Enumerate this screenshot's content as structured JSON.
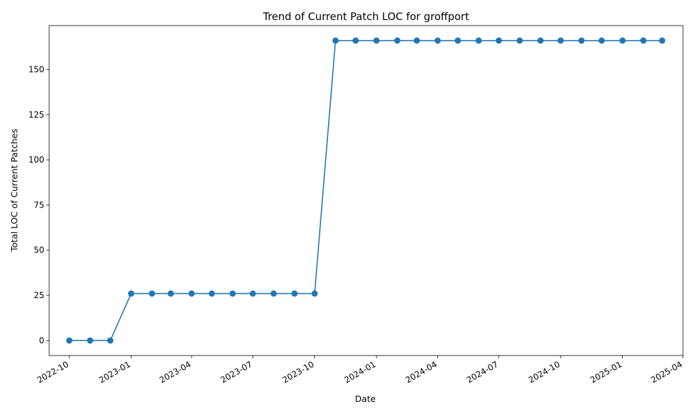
{
  "chart_data": {
    "type": "line",
    "title": "Trend of Current Patch LOC for groffport",
    "xlabel": "Date",
    "ylabel": "Total LOC of Current Patches",
    "x_ticks": [
      "2022-10",
      "2023-01",
      "2023-04",
      "2023-07",
      "2023-10",
      "2024-01",
      "2024-04",
      "2024-07",
      "2024-10",
      "2025-01",
      "2025-04"
    ],
    "y_ticks": [
      0,
      25,
      50,
      75,
      100,
      125,
      150
    ],
    "xlim": [
      "2022-09-01",
      "2025-04-01"
    ],
    "ylim": [
      -8.3,
      174.3
    ],
    "grid": false,
    "color": "#1f77b4",
    "series": [
      {
        "x": [
          "2022-10-01",
          "2022-11-01",
          "2022-12-01",
          "2023-01-01",
          "2023-02-01",
          "2023-03-01",
          "2023-04-01",
          "2023-05-01",
          "2023-06-01",
          "2023-07-01",
          "2023-08-01",
          "2023-09-01",
          "2023-10-01",
          "2023-11-01",
          "2023-12-01",
          "2024-01-01",
          "2024-02-01",
          "2024-03-01",
          "2024-04-01",
          "2024-05-01",
          "2024-06-01",
          "2024-07-01",
          "2024-08-01",
          "2024-09-01",
          "2024-10-01",
          "2024-11-01",
          "2024-12-01",
          "2025-01-01",
          "2025-02-01",
          "2025-03-01"
        ],
        "values": [
          0,
          0,
          0,
          26,
          26,
          26,
          26,
          26,
          26,
          26,
          26,
          26,
          26,
          166,
          166,
          166,
          166,
          166,
          166,
          166,
          166,
          166,
          166,
          166,
          166,
          166,
          166,
          166,
          166,
          166
        ]
      }
    ]
  }
}
